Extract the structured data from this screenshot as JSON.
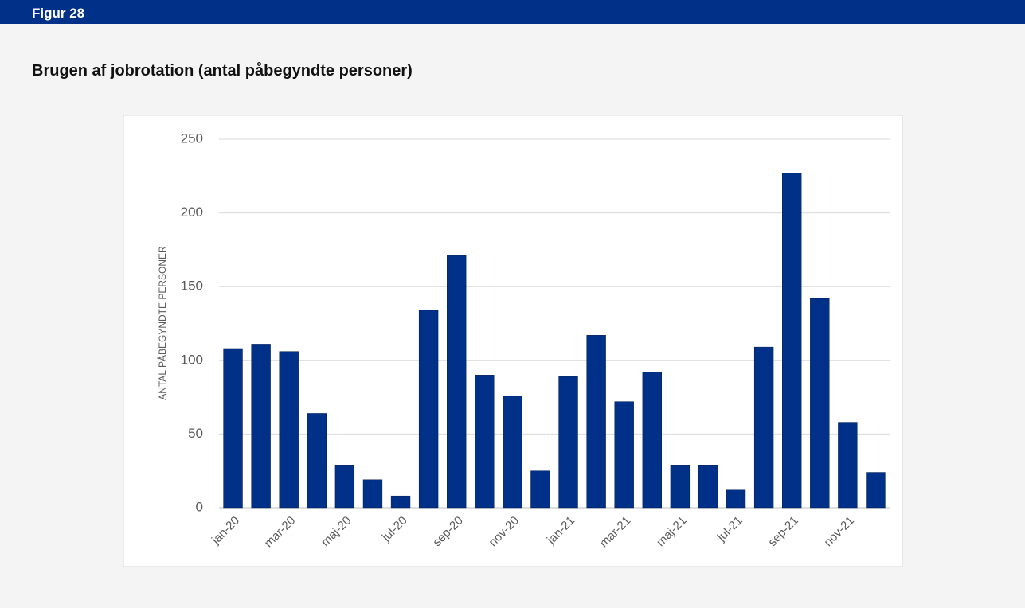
{
  "header": {
    "label": "Figur 28"
  },
  "chart_data": {
    "type": "bar",
    "title": "Brugen af jobrotation (antal påbegyndte personer)",
    "ylabel": "ANTAL PÅBEGYNDTE PERSONER",
    "categories": [
      "jan-20",
      null,
      "mar-20",
      null,
      "maj-20",
      null,
      "jul-20",
      null,
      "sep-20",
      null,
      "nov-20",
      null,
      "jan-21",
      null,
      "mar-21",
      null,
      "maj-21",
      null,
      "jul-21",
      null,
      "sep-21",
      null,
      "nov-21",
      null
    ],
    "values": [
      108,
      111,
      106,
      64,
      29,
      19,
      8,
      134,
      171,
      90,
      76,
      25,
      89,
      117,
      72,
      92,
      29,
      29,
      12,
      109,
      227,
      142,
      58,
      24
    ],
    "color": "#003087",
    "ylim": [
      0,
      250
    ],
    "yticks": [
      0,
      50,
      100,
      150,
      200,
      250
    ],
    "grid": true
  }
}
